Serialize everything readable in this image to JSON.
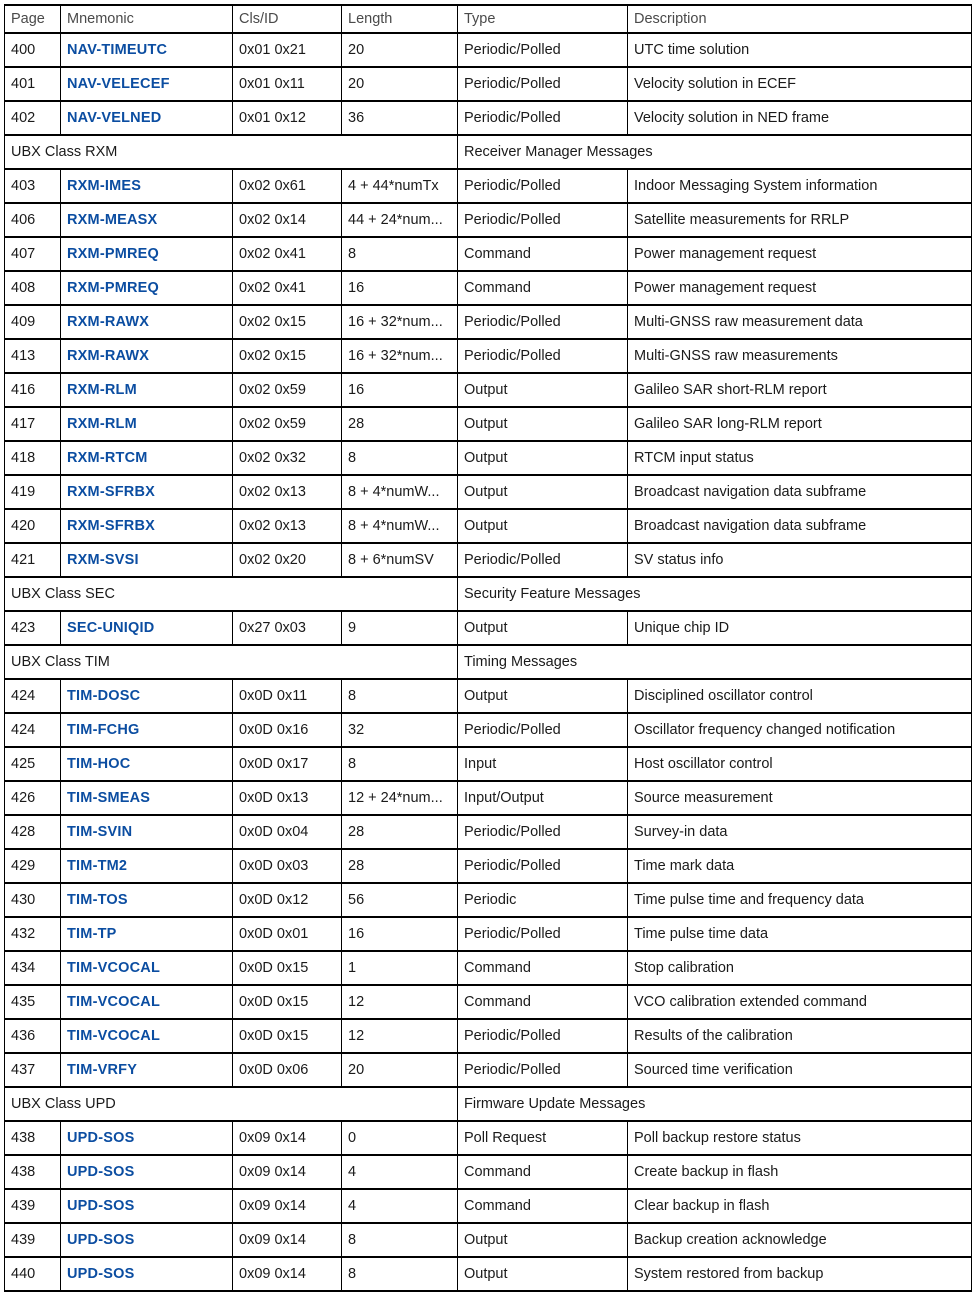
{
  "colors": {
    "link_blue": "#0b4da1",
    "header_text": "#4a4a4a",
    "body_text": "#1a1a1a",
    "border": "#000000"
  },
  "table": {
    "columns": [
      {
        "key": "page",
        "label": "Page"
      },
      {
        "key": "mnemonic",
        "label": "Mnemonic"
      },
      {
        "key": "clsid",
        "label": "Cls/ID"
      },
      {
        "key": "length",
        "label": "Length"
      },
      {
        "key": "type",
        "label": "Type"
      },
      {
        "key": "description",
        "label": "Description"
      }
    ],
    "rows": [
      {
        "kind": "data",
        "page": "400",
        "mnemonic": "NAV-TIMEUTC",
        "clsid": "0x01 0x21",
        "length": "20",
        "type": "Periodic/Polled",
        "description": "UTC time solution"
      },
      {
        "kind": "data",
        "page": "401",
        "mnemonic": "NAV-VELECEF",
        "clsid": "0x01 0x11",
        "length": "20",
        "type": "Periodic/Polled",
        "description": "Velocity solution in ECEF"
      },
      {
        "kind": "data",
        "page": "402",
        "mnemonic": "NAV-VELNED",
        "clsid": "0x01 0x12",
        "length": "36",
        "type": "Periodic/Polled",
        "description": "Velocity solution in NED frame"
      },
      {
        "kind": "section",
        "class_label": "UBX Class RXM",
        "messages_label": "Receiver Manager Messages"
      },
      {
        "kind": "data",
        "page": "403",
        "mnemonic": "RXM-IMES",
        "clsid": "0x02 0x61",
        "length": "4 + 44*numTx",
        "type": "Periodic/Polled",
        "description": "Indoor Messaging System information"
      },
      {
        "kind": "data",
        "page": "406",
        "mnemonic": "RXM-MEASX",
        "clsid": "0x02 0x14",
        "length": "44 + 24*num...",
        "type": "Periodic/Polled",
        "description": "Satellite measurements for RRLP"
      },
      {
        "kind": "data",
        "page": "407",
        "mnemonic": "RXM-PMREQ",
        "clsid": "0x02 0x41",
        "length": "8",
        "type": "Command",
        "description": "Power management request"
      },
      {
        "kind": "data",
        "page": "408",
        "mnemonic": "RXM-PMREQ",
        "clsid": "0x02 0x41",
        "length": "16",
        "type": "Command",
        "description": "Power management request"
      },
      {
        "kind": "data",
        "page": "409",
        "mnemonic": "RXM-RAWX",
        "clsid": "0x02 0x15",
        "length": "16 + 32*num...",
        "type": "Periodic/Polled",
        "description": "Multi-GNSS raw measurement data"
      },
      {
        "kind": "data",
        "page": "413",
        "mnemonic": "RXM-RAWX",
        "clsid": "0x02 0x15",
        "length": "16 + 32*num...",
        "type": "Periodic/Polled",
        "description": "Multi-GNSS raw measurements"
      },
      {
        "kind": "data",
        "page": "416",
        "mnemonic": "RXM-RLM",
        "clsid": "0x02 0x59",
        "length": "16",
        "type": "Output",
        "description": "Galileo SAR short-RLM report"
      },
      {
        "kind": "data",
        "page": "417",
        "mnemonic": "RXM-RLM",
        "clsid": "0x02 0x59",
        "length": "28",
        "type": "Output",
        "description": "Galileo SAR long-RLM report"
      },
      {
        "kind": "data",
        "page": "418",
        "mnemonic": "RXM-RTCM",
        "clsid": "0x02 0x32",
        "length": "8",
        "type": "Output",
        "description": "RTCM input status"
      },
      {
        "kind": "data",
        "page": "419",
        "mnemonic": "RXM-SFRBX",
        "clsid": "0x02 0x13",
        "length": "8 + 4*numW...",
        "type": "Output",
        "description": "Broadcast navigation data subframe"
      },
      {
        "kind": "data",
        "page": "420",
        "mnemonic": "RXM-SFRBX",
        "clsid": "0x02 0x13",
        "length": "8 + 4*numW...",
        "type": "Output",
        "description": "Broadcast navigation data subframe"
      },
      {
        "kind": "data",
        "page": "421",
        "mnemonic": "RXM-SVSI",
        "clsid": "0x02 0x20",
        "length": "8 + 6*numSV",
        "type": "Periodic/Polled",
        "description": "SV status info"
      },
      {
        "kind": "section",
        "class_label": "UBX Class SEC",
        "messages_label": "Security Feature Messages"
      },
      {
        "kind": "data",
        "page": "423",
        "mnemonic": "SEC-UNIQID",
        "clsid": "0x27 0x03",
        "length": "9",
        "type": "Output",
        "description": "Unique chip ID"
      },
      {
        "kind": "section",
        "class_label": "UBX Class TIM",
        "messages_label": "Timing Messages"
      },
      {
        "kind": "data",
        "page": "424",
        "mnemonic": "TIM-DOSC",
        "clsid": "0x0D 0x11",
        "length": "8",
        "type": "Output",
        "description": "Disciplined oscillator control"
      },
      {
        "kind": "data",
        "page": "424",
        "mnemonic": "TIM-FCHG",
        "clsid": "0x0D 0x16",
        "length": "32",
        "type": "Periodic/Polled",
        "description": "Oscillator frequency changed notification"
      },
      {
        "kind": "data",
        "page": "425",
        "mnemonic": "TIM-HOC",
        "clsid": "0x0D 0x17",
        "length": "8",
        "type": "Input",
        "description": "Host oscillator control"
      },
      {
        "kind": "data",
        "page": "426",
        "mnemonic": "TIM-SMEAS",
        "clsid": "0x0D 0x13",
        "length": "12 + 24*num...",
        "type": "Input/Output",
        "description": "Source measurement"
      },
      {
        "kind": "data",
        "page": "428",
        "mnemonic": "TIM-SVIN",
        "clsid": "0x0D 0x04",
        "length": "28",
        "type": "Periodic/Polled",
        "description": "Survey-in data"
      },
      {
        "kind": "data",
        "page": "429",
        "mnemonic": "TIM-TM2",
        "clsid": "0x0D 0x03",
        "length": "28",
        "type": "Periodic/Polled",
        "description": "Time mark data"
      },
      {
        "kind": "data",
        "page": "430",
        "mnemonic": "TIM-TOS",
        "clsid": "0x0D 0x12",
        "length": "56",
        "type": "Periodic",
        "description": "Time pulse time and frequency data"
      },
      {
        "kind": "data",
        "page": "432",
        "mnemonic": "TIM-TP",
        "clsid": "0x0D 0x01",
        "length": "16",
        "type": "Periodic/Polled",
        "description": "Time pulse time data"
      },
      {
        "kind": "data",
        "page": "434",
        "mnemonic": "TIM-VCOCAL",
        "clsid": "0x0D 0x15",
        "length": "1",
        "type": "Command",
        "description": "Stop calibration"
      },
      {
        "kind": "data",
        "page": "435",
        "mnemonic": "TIM-VCOCAL",
        "clsid": "0x0D 0x15",
        "length": "12",
        "type": "Command",
        "description": "VCO calibration extended command"
      },
      {
        "kind": "data",
        "page": "436",
        "mnemonic": "TIM-VCOCAL",
        "clsid": "0x0D 0x15",
        "length": "12",
        "type": "Periodic/Polled",
        "description": "Results of the calibration"
      },
      {
        "kind": "data",
        "page": "437",
        "mnemonic": "TIM-VRFY",
        "clsid": "0x0D 0x06",
        "length": "20",
        "type": "Periodic/Polled",
        "description": "Sourced time verification"
      },
      {
        "kind": "section",
        "class_label": "UBX Class UPD",
        "messages_label": "Firmware Update Messages"
      },
      {
        "kind": "data",
        "page": "438",
        "mnemonic": "UPD-SOS",
        "clsid": "0x09 0x14",
        "length": "0",
        "type": "Poll Request",
        "description": "Poll backup restore status"
      },
      {
        "kind": "data",
        "page": "438",
        "mnemonic": "UPD-SOS",
        "clsid": "0x09 0x14",
        "length": "4",
        "type": "Command",
        "description": "Create backup in flash"
      },
      {
        "kind": "data",
        "page": "439",
        "mnemonic": "UPD-SOS",
        "clsid": "0x09 0x14",
        "length": "4",
        "type": "Command",
        "description": "Clear backup in flash"
      },
      {
        "kind": "data",
        "page": "439",
        "mnemonic": "UPD-SOS",
        "clsid": "0x09 0x14",
        "length": "8",
        "type": "Output",
        "description": "Backup creation acknowledge"
      },
      {
        "kind": "data",
        "page": "440",
        "mnemonic": "UPD-SOS",
        "clsid": "0x09 0x14",
        "length": "8",
        "type": "Output",
        "description": "System restored from backup"
      }
    ]
  }
}
